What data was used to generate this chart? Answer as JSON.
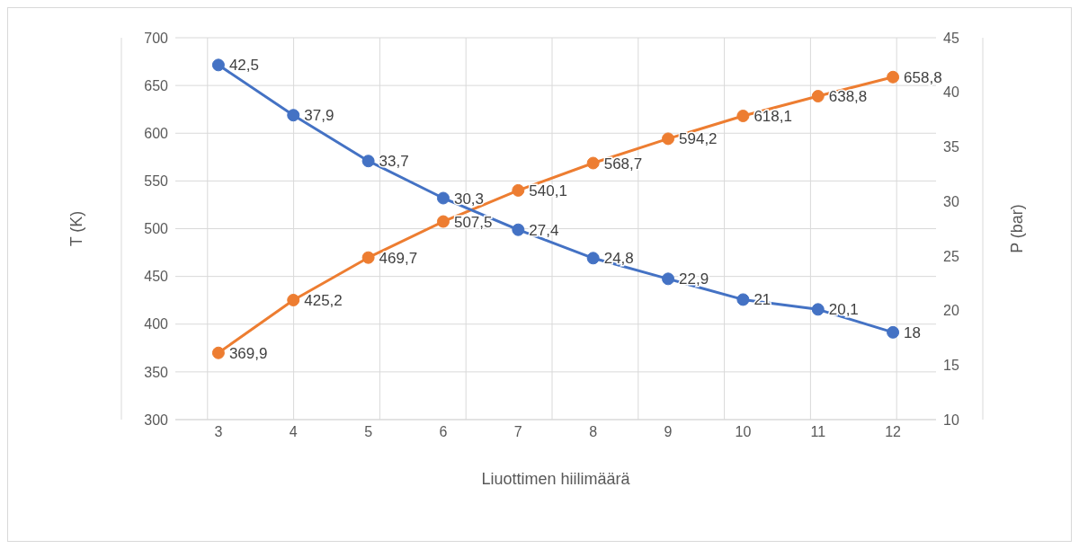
{
  "chart_data": {
    "type": "line",
    "xlabel": "Liuottimen hiilimäärä",
    "ylabel": "T (K)",
    "y2label": "P (bar)",
    "categories": [
      "3",
      "4",
      "5",
      "6",
      "7",
      "8",
      "9",
      "10",
      "11",
      "12"
    ],
    "series": [
      {
        "color": "#ed7d31",
        "values": [
          369.9,
          425.2,
          469.7,
          507.5,
          540.1,
          568.7,
          594.2,
          618.1,
          638.8,
          658.8
        ],
        "value_labels": [
          "369,9",
          "425,2",
          "469,7",
          "507,5",
          "540,1",
          "568,7",
          "594,2",
          "618,1",
          "638,8",
          "658,8"
        ]
      },
      {
        "color": "#4472c4",
        "axis": "y2",
        "values": [
          42.5,
          37.9,
          33.7,
          30.3,
          27.4,
          24.8,
          22.9,
          21,
          20.1,
          18
        ],
        "value_labels": [
          "42,5",
          "37,9",
          "33,7",
          "30,3",
          "27,4",
          "24,8",
          "22,9",
          "21",
          "20,1",
          "18"
        ]
      }
    ],
    "ylim": [
      300,
      700
    ],
    "yticks": [
      300,
      350,
      400,
      450,
      500,
      550,
      600,
      650,
      700
    ],
    "y2lim": [
      10,
      45
    ],
    "y2ticks": [
      10,
      15,
      20,
      25,
      30,
      35,
      40,
      45
    ],
    "grid": true,
    "marker": "circle",
    "line_style": "solid"
  }
}
